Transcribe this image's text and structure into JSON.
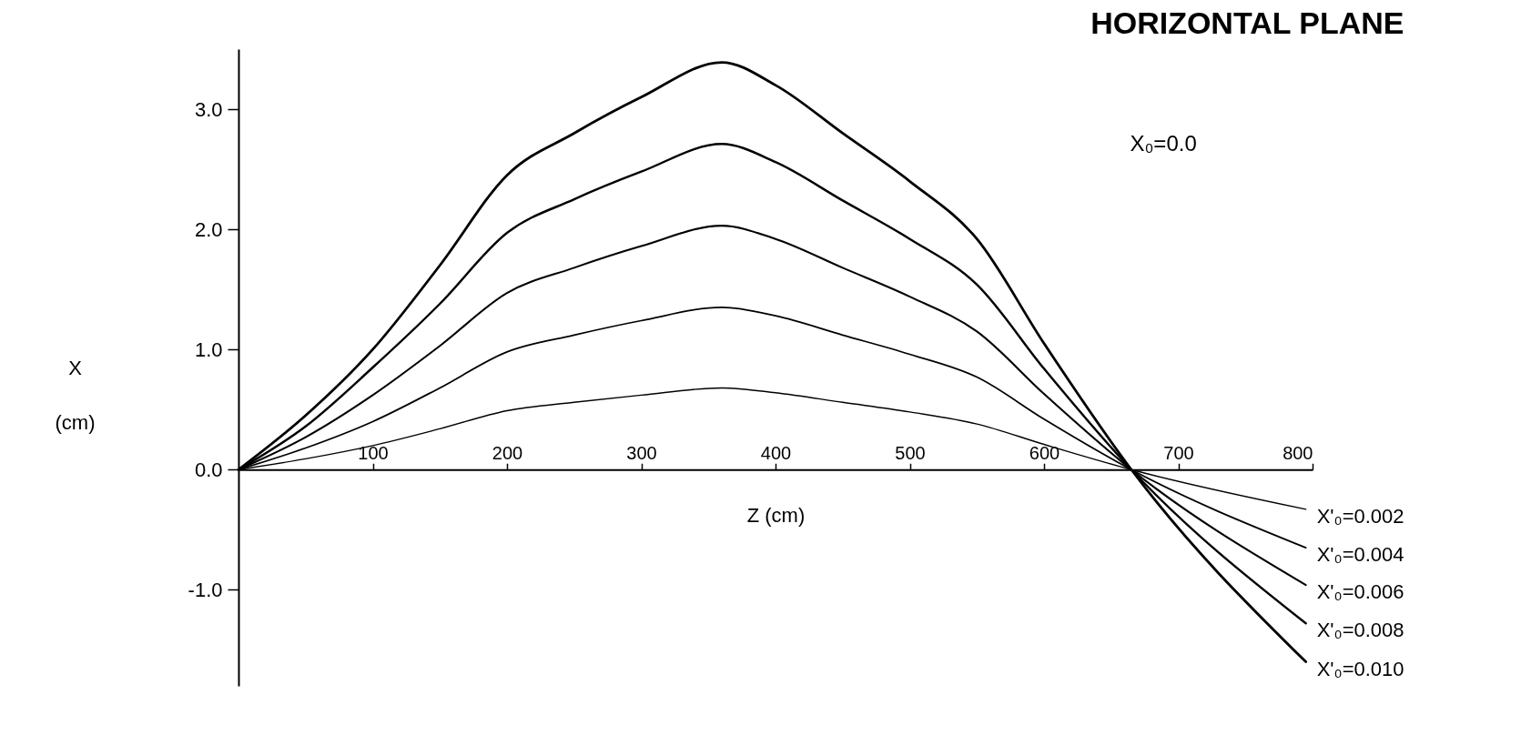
{
  "chart_data": {
    "type": "line",
    "title": "HORIZONTAL PLANE",
    "xlabel": "Z (cm)",
    "ylabel": "X (cm)",
    "annotations": [
      "X₀=0.0"
    ],
    "x": [
      0,
      50,
      100,
      150,
      200,
      250,
      300,
      360,
      400,
      450,
      500,
      550,
      600,
      665,
      795
    ],
    "xlim": [
      0,
      800
    ],
    "xticks": [
      100,
      200,
      300,
      400,
      500,
      600,
      700,
      800
    ],
    "ylim": [
      -1.8,
      3.5
    ],
    "yticks": [
      {
        "value": -1,
        "label": "-1.0"
      },
      {
        "value": 0,
        "label": "0.0"
      },
      {
        "value": 1,
        "label": "1.0"
      },
      {
        "value": 2,
        "label": "2.0"
      },
      {
        "value": 3,
        "label": "3.0"
      }
    ],
    "grid": false,
    "marker": "none",
    "line_style": "solid",
    "series": [
      {
        "name": "X'₀=0.002",
        "color": "#000000",
        "values": [
          0,
          0.09,
          0.2,
          0.34,
          0.49,
          0.56,
          0.62,
          0.68,
          0.64,
          0.56,
          0.48,
          0.38,
          0.21,
          0,
          -0.33
        ]
      },
      {
        "name": "X'₀=0.004",
        "color": "#000000",
        "values": [
          0,
          0.18,
          0.4,
          0.68,
          0.98,
          1.12,
          1.24,
          1.35,
          1.28,
          1.12,
          0.96,
          0.77,
          0.42,
          0,
          -0.65
        ]
      },
      {
        "name": "X'₀=0.006",
        "color": "#000000",
        "values": [
          0,
          0.27,
          0.62,
          1.03,
          1.47,
          1.68,
          1.86,
          2.03,
          1.92,
          1.68,
          1.44,
          1.15,
          0.63,
          0,
          -0.96
        ]
      },
      {
        "name": "X'₀=0.008",
        "color": "#000000",
        "values": [
          0,
          0.36,
          0.85,
          1.38,
          1.97,
          2.25,
          2.48,
          2.71,
          2.56,
          2.24,
          1.92,
          1.54,
          0.84,
          0,
          -1.28
        ]
      },
      {
        "name": "X'₀=0.010",
        "color": "#000000",
        "values": [
          0,
          0.45,
          1.0,
          1.7,
          2.45,
          2.8,
          3.1,
          3.39,
          3.2,
          2.8,
          2.4,
          1.92,
          1.05,
          0,
          -1.6
        ]
      }
    ]
  }
}
